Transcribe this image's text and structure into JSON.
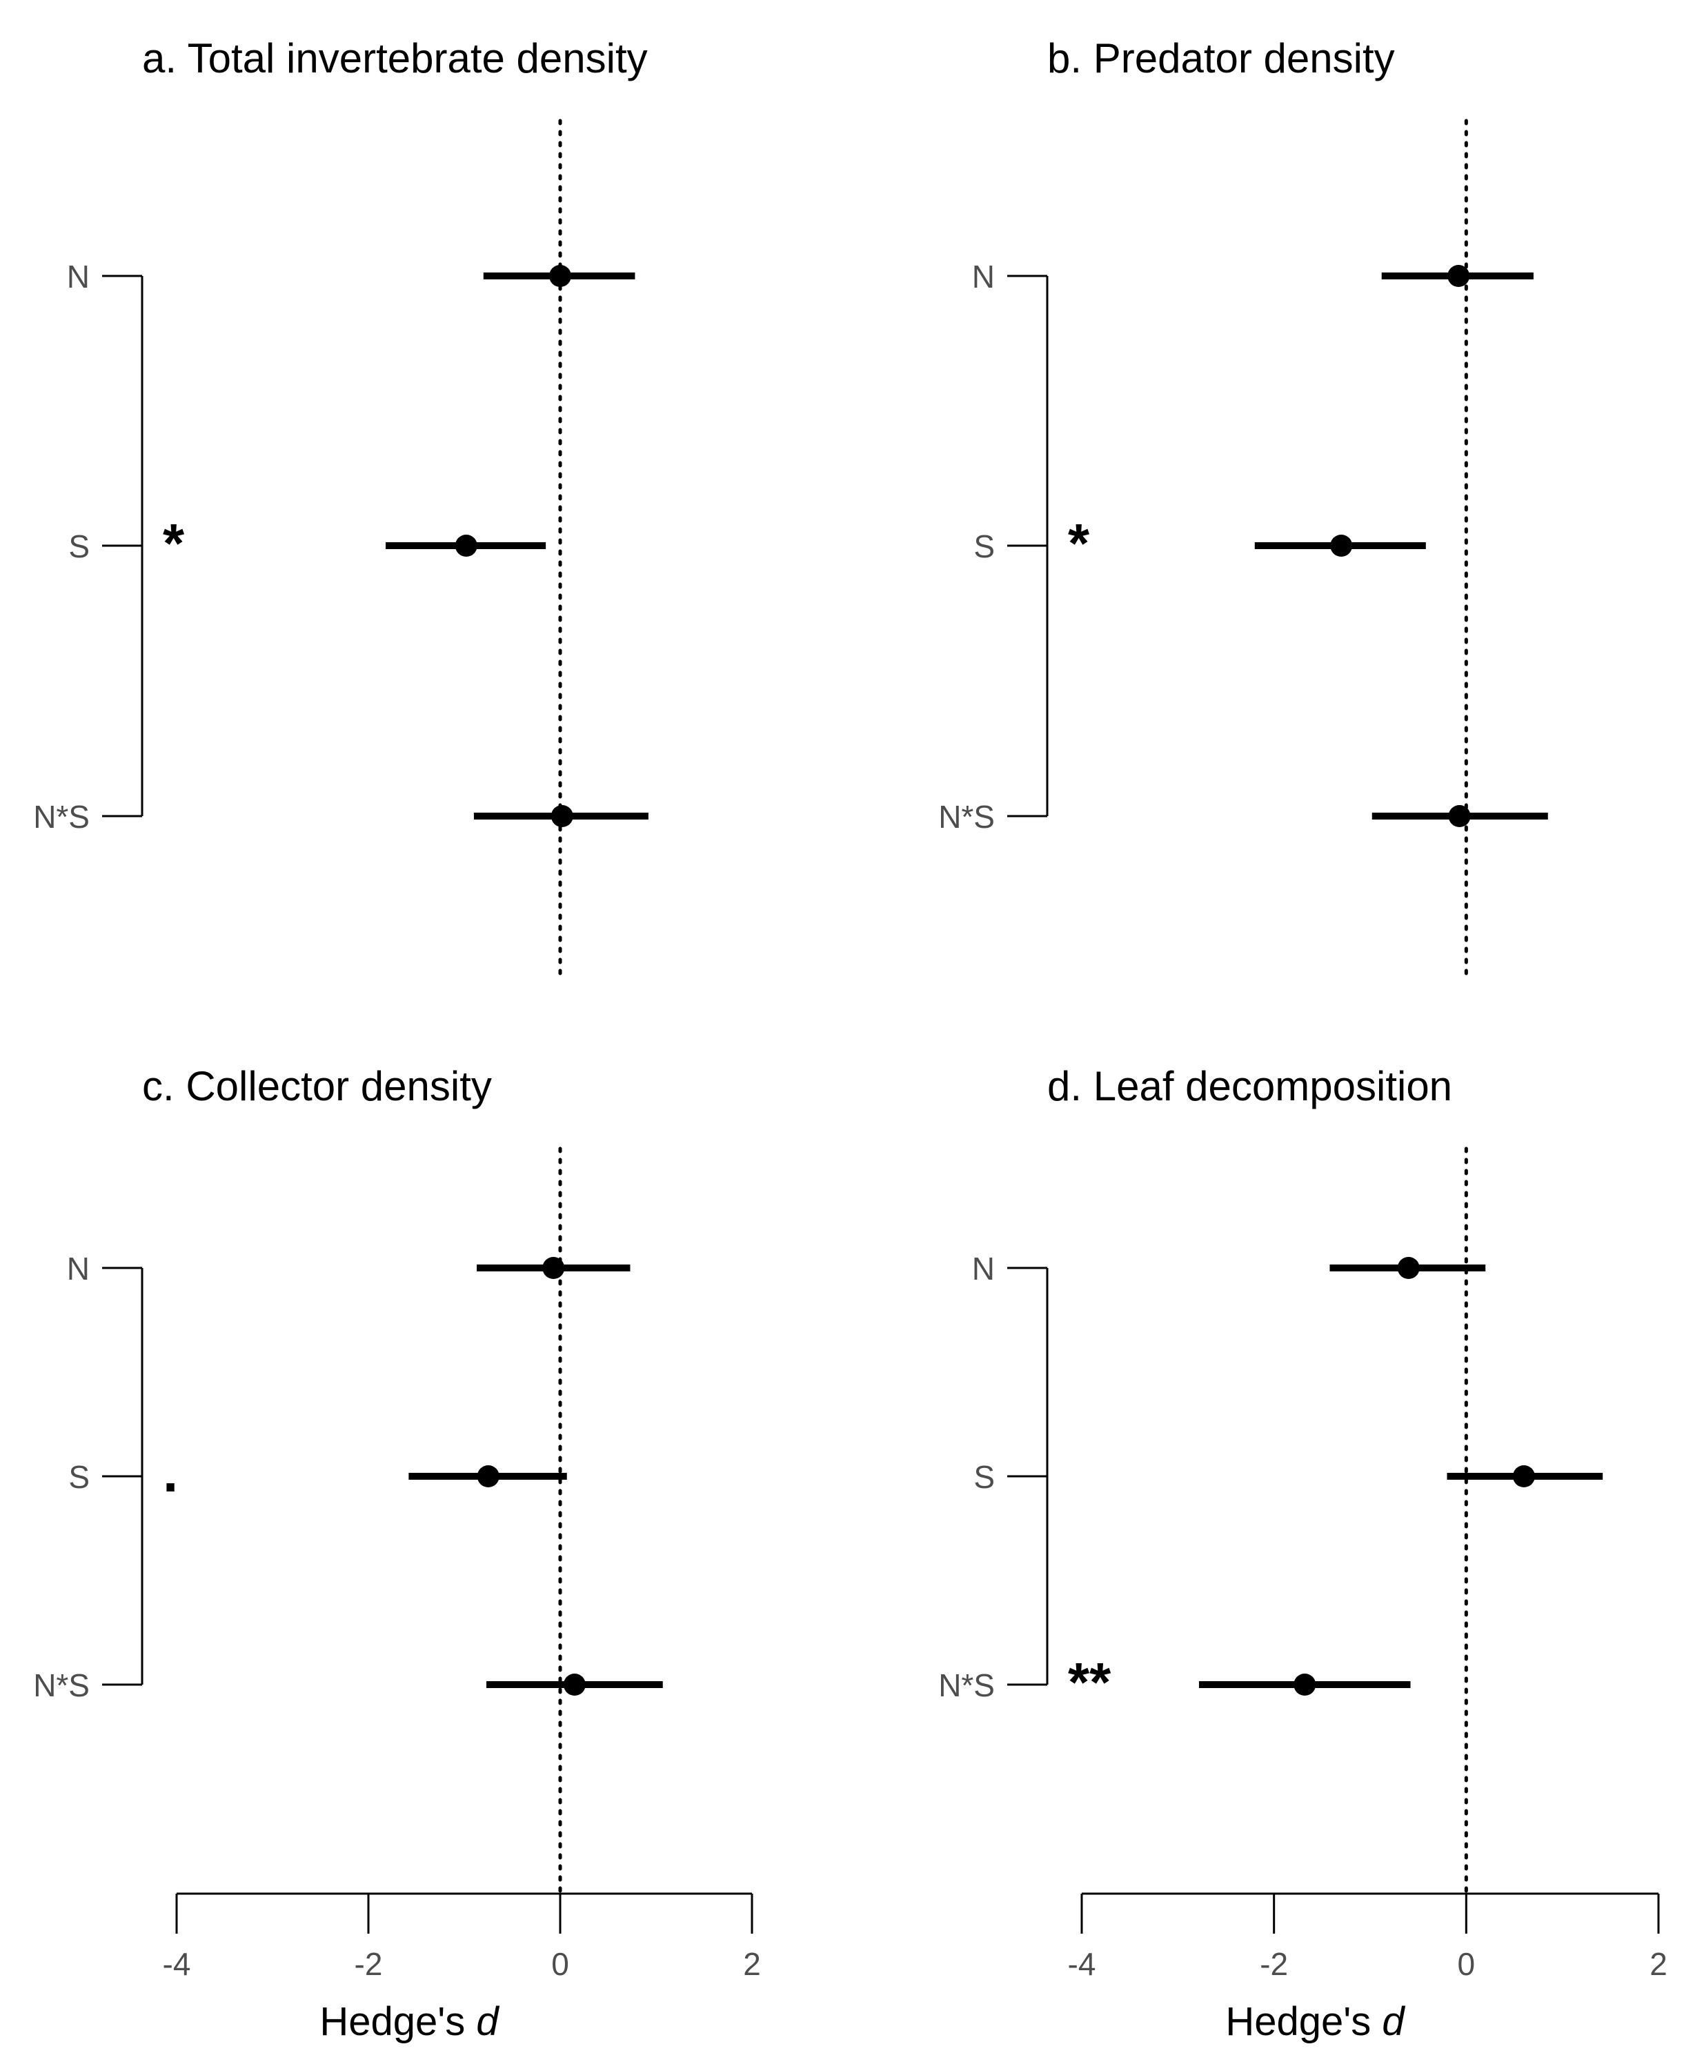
{
  "chart_data": [
    {
      "type": "forest",
      "title": "a. Total invertebrate density",
      "rows": [
        {
          "label": "N",
          "estimate": 0.0,
          "lower": -0.8,
          "upper": 0.78,
          "significance": ""
        },
        {
          "label": "S",
          "estimate": -0.98,
          "lower": -1.82,
          "upper": -0.15,
          "significance": "*"
        },
        {
          "label": "N*S",
          "estimate": 0.02,
          "lower": -0.9,
          "upper": 0.92,
          "significance": ""
        }
      ]
    },
    {
      "type": "forest",
      "title": "b. Predator density",
      "rows": [
        {
          "label": "N",
          "estimate": -0.08,
          "lower": -0.88,
          "upper": 0.7,
          "significance": ""
        },
        {
          "label": "S",
          "estimate": -1.3,
          "lower": -2.2,
          "upper": -0.42,
          "significance": "*"
        },
        {
          "label": "N*S",
          "estimate": -0.07,
          "lower": -0.98,
          "upper": 0.85,
          "significance": ""
        }
      ]
    },
    {
      "type": "forest",
      "title": "c. Collector density",
      "rows": [
        {
          "label": "N",
          "estimate": -0.07,
          "lower": -0.87,
          "upper": 0.73,
          "significance": ""
        },
        {
          "label": "S",
          "estimate": -0.75,
          "lower": -1.58,
          "upper": 0.07,
          "significance": "."
        },
        {
          "label": "N*S",
          "estimate": 0.15,
          "lower": -0.77,
          "upper": 1.07,
          "significance": ""
        }
      ]
    },
    {
      "type": "forest",
      "title": "d. Leaf decomposition",
      "rows": [
        {
          "label": "N",
          "estimate": -0.6,
          "lower": -1.42,
          "upper": 0.2,
          "significance": ""
        },
        {
          "label": "S",
          "estimate": 0.6,
          "lower": -0.2,
          "upper": 1.42,
          "significance": ""
        },
        {
          "label": "N*S",
          "estimate": -1.68,
          "lower": -2.78,
          "upper": -0.58,
          "significance": "**"
        }
      ]
    }
  ],
  "axis": {
    "xlabel_main": "Hedge's ",
    "xlabel_italic": "d",
    "xlim": [
      -4,
      2
    ],
    "ticks": [
      "-4",
      "-2",
      "0",
      "2"
    ],
    "reference_line_at": 0,
    "reference_line_style": "dotted"
  },
  "colors": {
    "ink": "#000000",
    "label": "#4d4d4d"
  }
}
